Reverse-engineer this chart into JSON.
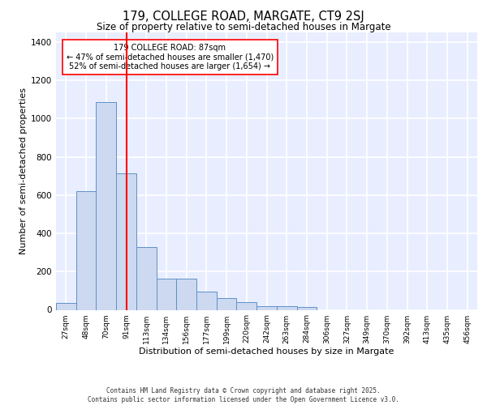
{
  "title1": "179, COLLEGE ROAD, MARGATE, CT9 2SJ",
  "title2": "Size of property relative to semi-detached houses in Margate",
  "xlabel": "Distribution of semi-detached houses by size in Margate",
  "ylabel": "Number of semi-detached properties",
  "categories": [
    "27sqm",
    "48sqm",
    "70sqm",
    "91sqm",
    "113sqm",
    "134sqm",
    "156sqm",
    "177sqm",
    "199sqm",
    "220sqm",
    "242sqm",
    "263sqm",
    "284sqm",
    "306sqm",
    "327sqm",
    "349sqm",
    "370sqm",
    "392sqm",
    "413sqm",
    "435sqm",
    "456sqm"
  ],
  "values": [
    35,
    620,
    1085,
    715,
    330,
    165,
    165,
    95,
    60,
    40,
    20,
    20,
    15,
    0,
    0,
    0,
    0,
    0,
    0,
    0,
    0
  ],
  "bar_color": "#ccd9f0",
  "bar_edge_color": "#6090c8",
  "property_label": "179 COLLEGE ROAD: 87sqm",
  "pct_smaller": "47% of semi-detached houses are smaller (1,470)",
  "pct_larger": "52% of semi-detached houses are larger (1,654)",
  "vline_color": "red",
  "vline_x_index": 3,
  "ylim": [
    0,
    1450
  ],
  "yticks": [
    0,
    200,
    400,
    600,
    800,
    1000,
    1200,
    1400
  ],
  "background_color": "#e8eeff",
  "grid_color": "white",
  "footer_line1": "Contains HM Land Registry data © Crown copyright and database right 2025.",
  "footer_line2": "Contains public sector information licensed under the Open Government Licence v3.0."
}
